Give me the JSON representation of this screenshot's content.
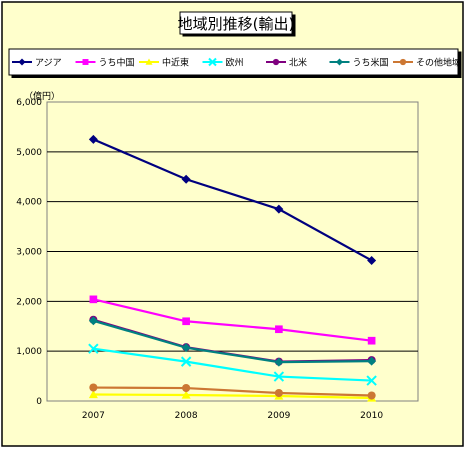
{
  "chart_data": {
    "type": "line",
    "title": "地域別推移(輸出)",
    "unit_label": "（億円）",
    "x": [
      "2007",
      "2008",
      "2009",
      "2010"
    ],
    "y_ticks": [
      "0",
      "1,000",
      "2,000",
      "3,000",
      "4,000",
      "5,000",
      "6,000"
    ],
    "ylim": [
      0,
      6000
    ],
    "grid": true,
    "legend_placement": "top",
    "series": [
      {
        "name": "アジア",
        "values": [
          5250,
          4450,
          3850,
          2820
        ],
        "color": "#00007f",
        "marker": "diamond"
      },
      {
        "name": "うち中国",
        "values": [
          2040,
          1600,
          1440,
          1210
        ],
        "color": "#ff00ff",
        "marker": "square"
      },
      {
        "name": "中近東",
        "values": [
          130,
          120,
          100,
          60
        ],
        "color": "#ffff00",
        "marker": "triangle"
      },
      {
        "name": "欧州",
        "values": [
          1050,
          790,
          490,
          410
        ],
        "color": "#00ffff",
        "marker": "x"
      },
      {
        "name": "北米",
        "values": [
          1630,
          1080,
          790,
          820
        ],
        "color": "#7f007f",
        "marker": "circle"
      },
      {
        "name": "うち米国",
        "values": [
          1610,
          1070,
          780,
          800
        ],
        "color": "#008080",
        "marker": "diamond"
      },
      {
        "name": "その他地域",
        "values": [
          270,
          260,
          160,
          110
        ],
        "color": "#cc7733",
        "marker": "circle"
      }
    ]
  }
}
